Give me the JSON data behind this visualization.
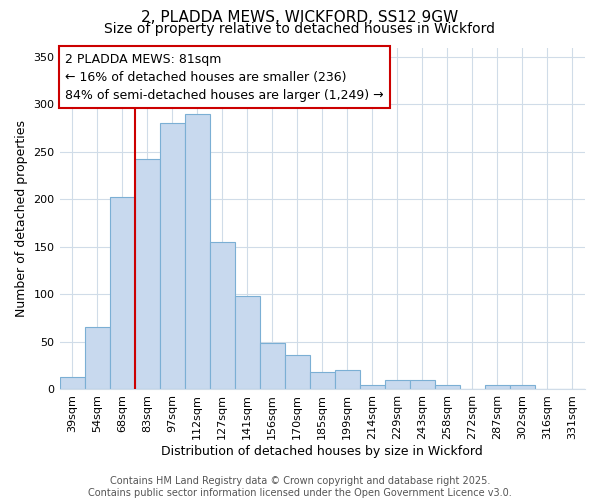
{
  "title": "2, PLADDA MEWS, WICKFORD, SS12 9GW",
  "subtitle": "Size of property relative to detached houses in Wickford",
  "xlabel": "Distribution of detached houses by size in Wickford",
  "ylabel": "Number of detached properties",
  "categories": [
    "39sqm",
    "54sqm",
    "68sqm",
    "83sqm",
    "97sqm",
    "112sqm",
    "127sqm",
    "141sqm",
    "156sqm",
    "170sqm",
    "185sqm",
    "199sqm",
    "214sqm",
    "229sqm",
    "243sqm",
    "258sqm",
    "272sqm",
    "287sqm",
    "302sqm",
    "316sqm",
    "331sqm"
  ],
  "values": [
    13,
    65,
    202,
    242,
    280,
    290,
    155,
    98,
    48,
    36,
    18,
    20,
    4,
    9,
    9,
    4,
    0,
    4,
    4,
    0,
    0
  ],
  "bar_color": "#c8d9ee",
  "bar_edge_color": "#7bafd4",
  "vline_index": 3,
  "vline_color": "#cc0000",
  "annotation_line1": "2 PLADDA MEWS: 81sqm",
  "annotation_line2": "← 16% of detached houses are smaller (236)",
  "annotation_line3": "84% of semi-detached houses are larger (1,249) →",
  "ylim": [
    0,
    360
  ],
  "yticks": [
    0,
    50,
    100,
    150,
    200,
    250,
    300,
    350
  ],
  "bg_color": "#ffffff",
  "plot_bg_color": "#ffffff",
  "grid_color": "#d0dce8",
  "footer_text": "Contains HM Land Registry data © Crown copyright and database right 2025.\nContains public sector information licensed under the Open Government Licence v3.0.",
  "title_fontsize": 11,
  "subtitle_fontsize": 10,
  "axis_label_fontsize": 9,
  "tick_fontsize": 8,
  "annotation_fontsize": 9,
  "footer_fontsize": 7
}
